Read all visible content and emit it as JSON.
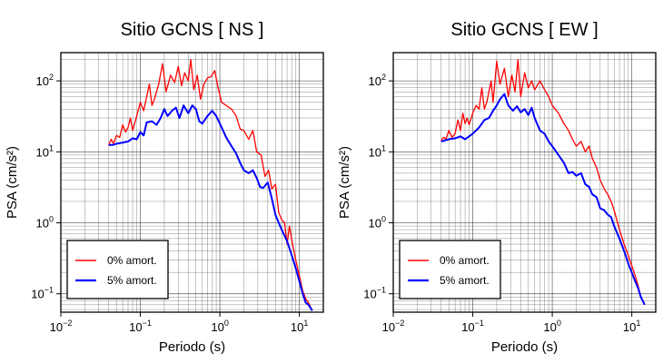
{
  "chart_data": [
    {
      "type": "line",
      "title": "Sitio GCNS [ NS ]",
      "xlabel": "Periodo (s)",
      "ylabel": "PSA (cm/s²)",
      "xscale": "log",
      "yscale": "log",
      "xlim": [
        0.01,
        20
      ],
      "ylim": [
        0.055,
        250
      ],
      "xticks": [
        {
          "v": 0.01,
          "b": "10",
          "e": "−2"
        },
        {
          "v": 0.1,
          "b": "10",
          "e": "−1"
        },
        {
          "v": 1,
          "b": "10",
          "e": "0"
        },
        {
          "v": 10,
          "b": "10",
          "e": "1"
        }
      ],
      "yticks": [
        {
          "v": 0.1,
          "b": "10",
          "e": "−1"
        },
        {
          "v": 1,
          "b": "10",
          "e": "0"
        },
        {
          "v": 10,
          "b": "10",
          "e": "1"
        },
        {
          "v": 100,
          "b": "10",
          "e": "2"
        }
      ],
      "grid": true,
      "legend_position": "bottom-left",
      "series": [
        {
          "name": "0% amort.",
          "color": "#ff0000",
          "points": [
            [
              0.04,
              12.5
            ],
            [
              0.043,
              15
            ],
            [
              0.046,
              13
            ],
            [
              0.05,
              17
            ],
            [
              0.055,
              16
            ],
            [
              0.06,
              24
            ],
            [
              0.065,
              19
            ],
            [
              0.07,
              22
            ],
            [
              0.075,
              30
            ],
            [
              0.08,
              20
            ],
            [
              0.09,
              32
            ],
            [
              0.1,
              50
            ],
            [
              0.11,
              38
            ],
            [
              0.12,
              60
            ],
            [
              0.13,
              90
            ],
            [
              0.14,
              45
            ],
            [
              0.15,
              55
            ],
            [
              0.17,
              90
            ],
            [
              0.19,
              175
            ],
            [
              0.21,
              70
            ],
            [
              0.24,
              120
            ],
            [
              0.27,
              95
            ],
            [
              0.3,
              160
            ],
            [
              0.33,
              85
            ],
            [
              0.36,
              130
            ],
            [
              0.4,
              100
            ],
            [
              0.43,
              200
            ],
            [
              0.47,
              75
            ],
            [
              0.52,
              120
            ],
            [
              0.57,
              55
            ],
            [
              0.63,
              90
            ],
            [
              0.7,
              110
            ],
            [
              0.78,
              115
            ],
            [
              0.86,
              140
            ],
            [
              0.95,
              80
            ],
            [
              1.05,
              50
            ],
            [
              1.2,
              45
            ],
            [
              1.4,
              40
            ],
            [
              1.6,
              32
            ],
            [
              1.8,
              21
            ],
            [
              2.0,
              20
            ],
            [
              2.3,
              15
            ],
            [
              2.6,
              20
            ],
            [
              2.9,
              10
            ],
            [
              3.3,
              9
            ],
            [
              3.7,
              4.5
            ],
            [
              4.1,
              5.5
            ],
            [
              4.5,
              3
            ],
            [
              5.0,
              3.5
            ],
            [
              5.5,
              1.4
            ],
            [
              6.0,
              1.1
            ],
            [
              6.5,
              1.0
            ],
            [
              7.0,
              0.5
            ],
            [
              7.5,
              0.9
            ],
            [
              8.2,
              0.5
            ],
            [
              9.0,
              0.3
            ],
            [
              10.0,
              0.18
            ],
            [
              11.0,
              0.11
            ],
            [
              12.0,
              0.085
            ],
            [
              13.0,
              0.075
            ],
            [
              14.5,
              0.058
            ]
          ]
        },
        {
          "name": "5% amort.",
          "color": "#0000ff",
          "points": [
            [
              0.04,
              12.5
            ],
            [
              0.045,
              12.5
            ],
            [
              0.05,
              13
            ],
            [
              0.06,
              13.5
            ],
            [
              0.07,
              14
            ],
            [
              0.08,
              15.5
            ],
            [
              0.09,
              15
            ],
            [
              0.1,
              19
            ],
            [
              0.11,
              17
            ],
            [
              0.12,
              26
            ],
            [
              0.14,
              27
            ],
            [
              0.16,
              24
            ],
            [
              0.18,
              30
            ],
            [
              0.2,
              40
            ],
            [
              0.22,
              32
            ],
            [
              0.25,
              38
            ],
            [
              0.28,
              42
            ],
            [
              0.31,
              30
            ],
            [
              0.35,
              45
            ],
            [
              0.4,
              35
            ],
            [
              0.45,
              45
            ],
            [
              0.5,
              40
            ],
            [
              0.55,
              27
            ],
            [
              0.6,
              25
            ],
            [
              0.7,
              32
            ],
            [
              0.8,
              38
            ],
            [
              0.9,
              32
            ],
            [
              1.0,
              25
            ],
            [
              1.2,
              16
            ],
            [
              1.4,
              12
            ],
            [
              1.6,
              9.5
            ],
            [
              1.8,
              7
            ],
            [
              2.0,
              5.5
            ],
            [
              2.3,
              5
            ],
            [
              2.6,
              5.5
            ],
            [
              2.9,
              4.3
            ],
            [
              3.2,
              3.2
            ],
            [
              3.5,
              3.1
            ],
            [
              4.0,
              3.7
            ],
            [
              4.5,
              2.2
            ],
            [
              5.0,
              1.3
            ],
            [
              5.5,
              1.0
            ],
            [
              6.0,
              0.8
            ],
            [
              7.0,
              0.55
            ],
            [
              8.0,
              0.35
            ],
            [
              9.0,
              0.23
            ],
            [
              10.0,
              0.15
            ],
            [
              11.0,
              0.1
            ],
            [
              12.0,
              0.075
            ],
            [
              13.0,
              0.07
            ],
            [
              14.5,
              0.058
            ]
          ]
        }
      ]
    },
    {
      "type": "line",
      "title": "Sitio GCNS [ EW ]",
      "xlabel": "Periodo (s)",
      "ylabel": "PSA (cm/s²)",
      "xscale": "log",
      "yscale": "log",
      "xlim": [
        0.01,
        20
      ],
      "ylim": [
        0.055,
        250
      ],
      "xticks": [
        {
          "v": 0.01,
          "b": "10",
          "e": "−2"
        },
        {
          "v": 0.1,
          "b": "10",
          "e": "−1"
        },
        {
          "v": 1,
          "b": "10",
          "e": "0"
        },
        {
          "v": 10,
          "b": "10",
          "e": "1"
        }
      ],
      "yticks": [
        {
          "v": 0.1,
          "b": "10",
          "e": "−1"
        },
        {
          "v": 1,
          "b": "10",
          "e": "0"
        },
        {
          "v": 10,
          "b": "10",
          "e": "1"
        },
        {
          "v": 100,
          "b": "10",
          "e": "2"
        }
      ],
      "grid": true,
      "legend_position": "bottom-left",
      "series": [
        {
          "name": "0% amort.",
          "color": "#ff0000",
          "points": [
            [
              0.04,
              14.5
            ],
            [
              0.043,
              16
            ],
            [
              0.046,
              15
            ],
            [
              0.05,
              20
            ],
            [
              0.055,
              16
            ],
            [
              0.06,
              18
            ],
            [
              0.065,
              28
            ],
            [
              0.07,
              20
            ],
            [
              0.075,
              35
            ],
            [
              0.08,
              25
            ],
            [
              0.085,
              30
            ],
            [
              0.09,
              24
            ],
            [
              0.1,
              35
            ],
            [
              0.11,
              45
            ],
            [
              0.12,
              40
            ],
            [
              0.13,
              80
            ],
            [
              0.14,
              40
            ],
            [
              0.15,
              50
            ],
            [
              0.17,
              100
            ],
            [
              0.18,
              50
            ],
            [
              0.2,
              190
            ],
            [
              0.22,
              90
            ],
            [
              0.25,
              150
            ],
            [
              0.28,
              60
            ],
            [
              0.31,
              120
            ],
            [
              0.34,
              70
            ],
            [
              0.37,
              200
            ],
            [
              0.4,
              60
            ],
            [
              0.45,
              130
            ],
            [
              0.5,
              80
            ],
            [
              0.55,
              100
            ],
            [
              0.6,
              75
            ],
            [
              0.7,
              100
            ],
            [
              0.8,
              75
            ],
            [
              0.9,
              60
            ],
            [
              1.0,
              45
            ],
            [
              1.2,
              35
            ],
            [
              1.4,
              25
            ],
            [
              1.6,
              20
            ],
            [
              1.8,
              15
            ],
            [
              2.0,
              12
            ],
            [
              2.3,
              14
            ],
            [
              2.6,
              10
            ],
            [
              2.9,
              12
            ],
            [
              3.2,
              8
            ],
            [
              3.6,
              6
            ],
            [
              4.0,
              4
            ],
            [
              4.5,
              3
            ],
            [
              5.0,
              2.5
            ],
            [
              5.5,
              2.0
            ],
            [
              6.0,
              1.5
            ],
            [
              7.0,
              0.8
            ],
            [
              8.0,
              0.5
            ],
            [
              9.0,
              0.35
            ],
            [
              10.0,
              0.25
            ],
            [
              11.0,
              0.18
            ],
            [
              12.0,
              0.13
            ],
            [
              13.0,
              0.09
            ],
            [
              14.5,
              0.07
            ]
          ]
        },
        {
          "name": "5% amort.",
          "color": "#0000ff",
          "points": [
            [
              0.04,
              14
            ],
            [
              0.05,
              15
            ],
            [
              0.06,
              15.5
            ],
            [
              0.07,
              16.5
            ],
            [
              0.08,
              15
            ],
            [
              0.09,
              16.5
            ],
            [
              0.1,
              18
            ],
            [
              0.12,
              22
            ],
            [
              0.14,
              28
            ],
            [
              0.16,
              30
            ],
            [
              0.18,
              38
            ],
            [
              0.2,
              45
            ],
            [
              0.22,
              55
            ],
            [
              0.25,
              65
            ],
            [
              0.28,
              45
            ],
            [
              0.32,
              38
            ],
            [
              0.36,
              44
            ],
            [
              0.4,
              36
            ],
            [
              0.45,
              40
            ],
            [
              0.5,
              33
            ],
            [
              0.55,
              42
            ],
            [
              0.6,
              30
            ],
            [
              0.7,
              20
            ],
            [
              0.8,
              18
            ],
            [
              0.9,
              14
            ],
            [
              1.0,
              12
            ],
            [
              1.2,
              9
            ],
            [
              1.4,
              7
            ],
            [
              1.6,
              5
            ],
            [
              1.8,
              5.2
            ],
            [
              2.0,
              4.6
            ],
            [
              2.3,
              5
            ],
            [
              2.6,
              3.5
            ],
            [
              2.9,
              3.2
            ],
            [
              3.2,
              2.5
            ],
            [
              3.6,
              2.3
            ],
            [
              4.0,
              1.6
            ],
            [
              4.5,
              1.5
            ],
            [
              5.0,
              1.3
            ],
            [
              5.5,
              1.2
            ],
            [
              6.0,
              0.9
            ],
            [
              7.0,
              0.6
            ],
            [
              8.0,
              0.4
            ],
            [
              9.0,
              0.27
            ],
            [
              10.0,
              0.2
            ],
            [
              11.0,
              0.15
            ],
            [
              12.0,
              0.12
            ],
            [
              13.0,
              0.09
            ],
            [
              14.5,
              0.07
            ]
          ]
        }
      ]
    }
  ]
}
